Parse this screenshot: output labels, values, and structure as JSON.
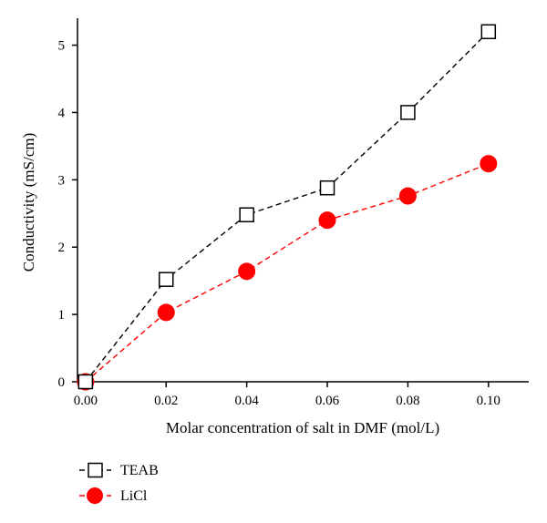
{
  "chart_data": {
    "type": "line",
    "title": "",
    "xlabel": "Molar concentration of salt in DMF (mol/L)",
    "ylabel": "Conductivity (mS/cm)",
    "xlim": [
      -0.002,
      0.11
    ],
    "ylim": [
      0,
      5.4
    ],
    "x": [
      0.0,
      0.02,
      0.04,
      0.06,
      0.08,
      0.1
    ],
    "xticks": [
      0.0,
      0.02,
      0.04,
      0.06,
      0.08,
      0.1
    ],
    "xtick_labels": [
      "0.00",
      "0.02",
      "0.04",
      "0.06",
      "0.08",
      "0.10"
    ],
    "yticks": [
      0,
      1,
      2,
      3,
      4,
      5
    ],
    "ytick_labels": [
      "0",
      "1",
      "2",
      "3",
      "4",
      "5"
    ],
    "grid": false,
    "legend_position": "bottom-left, below plot",
    "series": [
      {
        "name": "TEAB",
        "values": [
          0.0,
          1.52,
          2.48,
          2.88,
          4.0,
          5.2
        ],
        "color": "#000000",
        "marker": "open-square",
        "line": "dashed"
      },
      {
        "name": "LiCl",
        "values": [
          0.0,
          1.03,
          1.64,
          2.4,
          2.76,
          3.24
        ],
        "color": "#ff0000",
        "marker": "filled-circle",
        "line": "dashed"
      }
    ]
  }
}
